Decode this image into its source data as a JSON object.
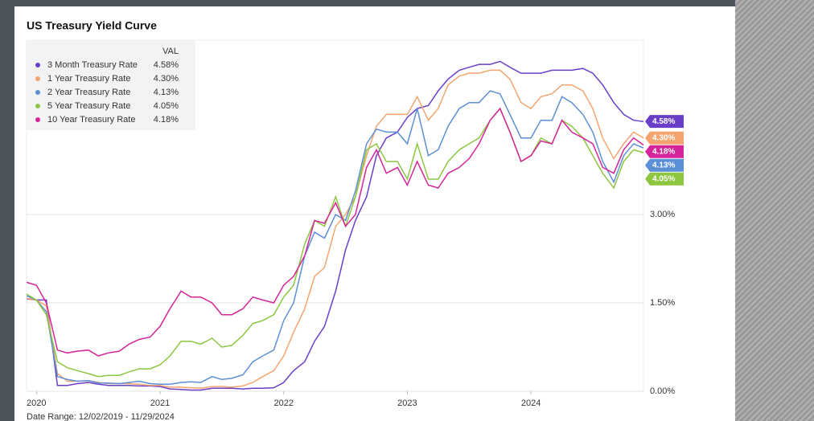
{
  "chart_data": {
    "type": "line",
    "title": "US Treasury Yield Curve",
    "legend_header": "VAL",
    "date_range": "Date Range: 12/02/2019 - 11/29/2024",
    "x": [
      2019.92,
      2020,
      2020.08,
      2020.17,
      2020.25,
      2020.33,
      2020.42,
      2020.5,
      2020.58,
      2020.67,
      2020.75,
      2020.83,
      2020.92,
      2021,
      2021.08,
      2021.17,
      2021.25,
      2021.33,
      2021.42,
      2021.5,
      2021.58,
      2021.67,
      2021.75,
      2021.83,
      2021.92,
      2022,
      2022.08,
      2022.17,
      2022.25,
      2022.33,
      2022.42,
      2022.5,
      2022.58,
      2022.67,
      2022.75,
      2022.83,
      2022.92,
      2023,
      2023.08,
      2023.17,
      2023.25,
      2023.33,
      2023.42,
      2023.5,
      2023.58,
      2023.67,
      2023.75,
      2023.83,
      2023.92,
      2024,
      2024.08,
      2024.17,
      2024.25,
      2024.33,
      2024.42,
      2024.5,
      2024.58,
      2024.67,
      2024.75,
      2024.83,
      2024.91
    ],
    "xlim": [
      2019.92,
      2024.91
    ],
    "xticks": [
      2020,
      2021,
      2022,
      2023,
      2024
    ],
    "ylim": [
      0,
      5.96
    ],
    "yticks": [
      {
        "value": 0,
        "label": "0.00%"
      },
      {
        "value": 1.5,
        "label": "1.50%"
      },
      {
        "value": 3,
        "label": "3.00%"
      }
    ],
    "grid": true,
    "series": [
      {
        "name": "3 Month Treasury Rate",
        "color": "#6a3fc8",
        "current": {
          "value": 4.58,
          "label": "4.58%"
        },
        "values": [
          1.57,
          1.55,
          1.55,
          0.1,
          0.1,
          0.13,
          0.15,
          0.12,
          0.1,
          0.1,
          0.1,
          0.09,
          0.09,
          0.08,
          0.04,
          0.03,
          0.02,
          0.02,
          0.05,
          0.05,
          0.05,
          0.04,
          0.05,
          0.05,
          0.06,
          0.15,
          0.35,
          0.5,
          0.85,
          1.1,
          1.7,
          2.4,
          2.9,
          3.3,
          4.0,
          4.3,
          4.4,
          4.65,
          4.8,
          4.85,
          5.1,
          5.3,
          5.45,
          5.5,
          5.55,
          5.55,
          5.6,
          5.5,
          5.4,
          5.4,
          5.4,
          5.45,
          5.45,
          5.45,
          5.48,
          5.4,
          5.2,
          4.9,
          4.7,
          4.6,
          4.58
        ]
      },
      {
        "name": "1 Year Treasury Rate",
        "color": "#f4a46e",
        "current": {
          "value": 4.3,
          "label": "4.30%"
        },
        "values": [
          1.58,
          1.55,
          1.45,
          0.3,
          0.17,
          0.17,
          0.18,
          0.15,
          0.13,
          0.13,
          0.13,
          0.12,
          0.1,
          0.1,
          0.07,
          0.07,
          0.06,
          0.05,
          0.08,
          0.08,
          0.07,
          0.09,
          0.15,
          0.25,
          0.35,
          0.6,
          1.0,
          1.4,
          1.95,
          2.1,
          2.8,
          3.0,
          3.3,
          4.0,
          4.5,
          4.7,
          4.7,
          4.7,
          5.0,
          4.6,
          4.8,
          5.2,
          5.35,
          5.4,
          5.4,
          5.45,
          5.45,
          5.3,
          4.9,
          4.8,
          5.0,
          5.05,
          5.2,
          5.2,
          5.1,
          4.8,
          4.3,
          3.95,
          4.2,
          4.4,
          4.3
        ]
      },
      {
        "name": "2 Year Treasury Rate",
        "color": "#5b8fd6",
        "current": {
          "value": 4.13,
          "label": "4.13%"
        },
        "values": [
          1.62,
          1.55,
          1.35,
          0.25,
          0.2,
          0.17,
          0.18,
          0.14,
          0.14,
          0.13,
          0.15,
          0.17,
          0.13,
          0.12,
          0.12,
          0.15,
          0.16,
          0.15,
          0.25,
          0.2,
          0.22,
          0.28,
          0.5,
          0.6,
          0.7,
          1.2,
          1.5,
          2.3,
          2.7,
          2.6,
          3.0,
          2.9,
          3.4,
          4.2,
          4.45,
          4.4,
          4.4,
          4.2,
          4.8,
          4.0,
          4.1,
          4.5,
          4.8,
          4.9,
          4.9,
          5.1,
          5.05,
          4.7,
          4.3,
          4.3,
          4.6,
          4.6,
          5.0,
          4.9,
          4.7,
          4.4,
          3.9,
          3.55,
          4.0,
          4.2,
          4.13
        ]
      },
      {
        "name": "5 Year Treasury Rate",
        "color": "#8dc63f",
        "current": {
          "value": 4.05,
          "label": "4.05%"
        },
        "values": [
          1.65,
          1.55,
          1.3,
          0.5,
          0.4,
          0.35,
          0.3,
          0.25,
          0.27,
          0.27,
          0.33,
          0.38,
          0.38,
          0.45,
          0.6,
          0.85,
          0.85,
          0.8,
          0.9,
          0.75,
          0.78,
          0.95,
          1.15,
          1.2,
          1.3,
          1.6,
          1.8,
          2.5,
          2.9,
          2.8,
          3.3,
          2.8,
          3.3,
          4.1,
          4.2,
          3.9,
          3.9,
          3.6,
          4.2,
          3.6,
          3.6,
          3.9,
          4.1,
          4.2,
          4.3,
          4.6,
          4.8,
          4.4,
          3.9,
          4.0,
          4.3,
          4.2,
          4.6,
          4.5,
          4.3,
          4.0,
          3.7,
          3.45,
          3.9,
          4.1,
          4.05
        ]
      },
      {
        "name": "10 Year Treasury Rate",
        "color": "#d6249a",
        "current": {
          "value": 4.18,
          "label": "4.18%"
        },
        "values": [
          1.85,
          1.8,
          1.5,
          0.7,
          0.65,
          0.68,
          0.7,
          0.6,
          0.65,
          0.68,
          0.8,
          0.88,
          0.92,
          1.1,
          1.4,
          1.7,
          1.6,
          1.6,
          1.5,
          1.3,
          1.3,
          1.4,
          1.6,
          1.55,
          1.5,
          1.8,
          1.95,
          2.3,
          2.9,
          2.85,
          3.2,
          2.8,
          3.0,
          3.8,
          4.1,
          3.7,
          3.8,
          3.5,
          3.9,
          3.5,
          3.45,
          3.7,
          3.8,
          3.95,
          4.2,
          4.6,
          4.8,
          4.4,
          3.9,
          4.0,
          4.25,
          4.2,
          4.6,
          4.4,
          4.3,
          4.2,
          3.8,
          3.7,
          4.1,
          4.3,
          4.18
        ]
      }
    ]
  }
}
